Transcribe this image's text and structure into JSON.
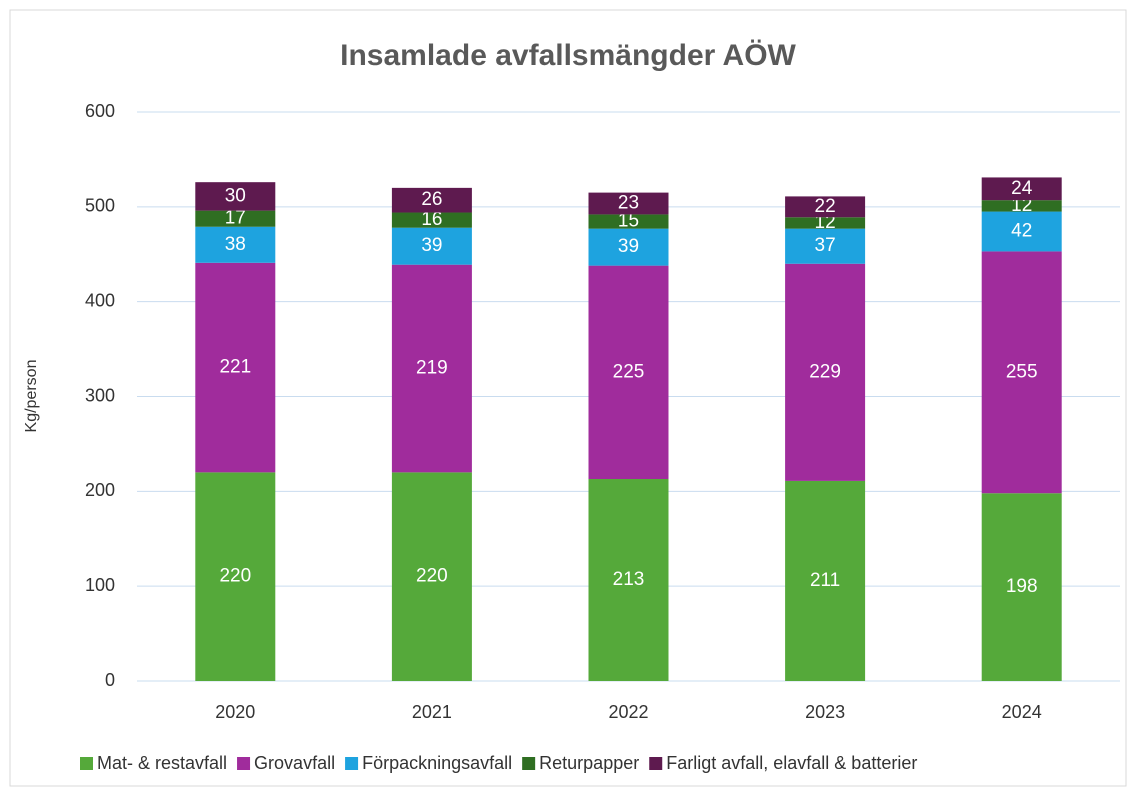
{
  "chart_data": {
    "type": "stacked_bar",
    "title": "Insamlade avfallsmängder AÖW",
    "y_label": "Kg/person",
    "categories": [
      "2020",
      "2021",
      "2022",
      "2023",
      "2024"
    ],
    "series": [
      {
        "name": "Mat- & restavfall",
        "color": "#55a93a",
        "values": [
          220,
          220,
          213,
          211,
          198
        ]
      },
      {
        "name": "Grovavfall",
        "color": "#a02c9c",
        "values": [
          221,
          219,
          225,
          229,
          255
        ]
      },
      {
        "name": "Förpackningsavfall",
        "color": "#1ea3df",
        "values": [
          38,
          39,
          39,
          37,
          42
        ]
      },
      {
        "name": "Returpapper",
        "color": "#2f6e22",
        "values": [
          17,
          16,
          15,
          12,
          12
        ]
      },
      {
        "name": "Farligt avfall, elavfall & batterier",
        "color": "#5e1a4f",
        "values": [
          30,
          26,
          23,
          22,
          24
        ]
      }
    ],
    "ylim": [
      0,
      600
    ],
    "yticks": [
      0,
      100,
      200,
      300,
      400,
      500,
      600
    ],
    "grid": true,
    "legend": "bottom"
  }
}
